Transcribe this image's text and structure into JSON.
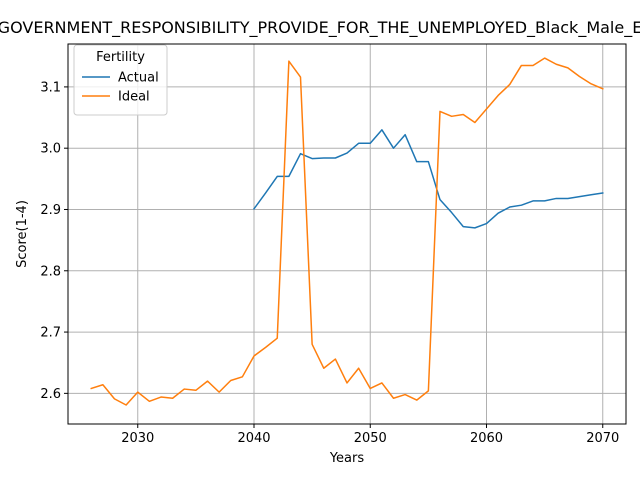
{
  "chart_data": {
    "type": "line",
    "title": "GOVERNMENT_RESPONSIBILITY_PROVIDE_FOR_THE_UNEMPLOYED_Black_Male_E",
    "xlabel": "Years",
    "ylabel": "Score(1-4)",
    "xlim": [
      2024,
      2072
    ],
    "ylim": [
      2.55,
      3.17
    ],
    "xticks": [
      2030,
      2040,
      2050,
      2060,
      2070
    ],
    "yticks": [
      2.6,
      2.7,
      2.8,
      2.9,
      3.0,
      3.1
    ],
    "ytick_labels": [
      "2.6",
      "2.7",
      "2.8",
      "2.9",
      "3.0",
      "3.1"
    ],
    "grid": true,
    "legend": {
      "title": "Fertility",
      "placement": "upper-left"
    },
    "series": [
      {
        "name": "Actual",
        "color": "#1f77b4",
        "x": [
          2040,
          2041,
          2042,
          2043,
          2044,
          2045,
          2046,
          2047,
          2048,
          2049,
          2050,
          2051,
          2052,
          2053,
          2054,
          2055,
          2056,
          2057,
          2058,
          2059,
          2060,
          2061,
          2062,
          2063,
          2064,
          2065,
          2066,
          2067,
          2068,
          2069,
          2070
        ],
        "y": [
          2.901,
          2.927,
          2.954,
          2.954,
          2.991,
          2.983,
          2.984,
          2.984,
          2.992,
          3.008,
          3.008,
          3.03,
          3.0,
          3.022,
          2.978,
          2.978,
          2.916,
          2.895,
          2.872,
          2.87,
          2.877,
          2.894,
          2.904,
          2.907,
          2.914,
          2.914,
          2.918,
          2.918,
          2.921,
          2.924,
          2.927
        ]
      },
      {
        "name": "Ideal",
        "color": "#ff7f0e",
        "x": [
          2026,
          2027,
          2028,
          2029,
          2030,
          2031,
          2032,
          2033,
          2034,
          2035,
          2036,
          2037,
          2038,
          2039,
          2040,
          2041,
          2042,
          2043,
          2044,
          2045,
          2046,
          2047,
          2048,
          2049,
          2050,
          2051,
          2052,
          2053,
          2054,
          2055,
          2056,
          2057,
          2058,
          2059,
          2060,
          2061,
          2062,
          2063,
          2064,
          2065,
          2066,
          2067,
          2068,
          2069,
          2070
        ],
        "y": [
          2.608,
          2.614,
          2.591,
          2.581,
          2.602,
          2.587,
          2.594,
          2.592,
          2.607,
          2.605,
          2.62,
          2.602,
          2.621,
          2.627,
          2.661,
          2.675,
          2.69,
          3.142,
          3.116,
          2.68,
          2.641,
          2.656,
          2.617,
          2.641,
          2.608,
          2.617,
          2.592,
          2.598,
          2.589,
          2.604,
          3.06,
          3.052,
          3.055,
          3.042,
          3.064,
          3.086,
          3.104,
          3.135,
          3.135,
          3.147,
          3.137,
          3.131,
          3.117,
          3.105,
          3.097
        ]
      }
    ]
  }
}
